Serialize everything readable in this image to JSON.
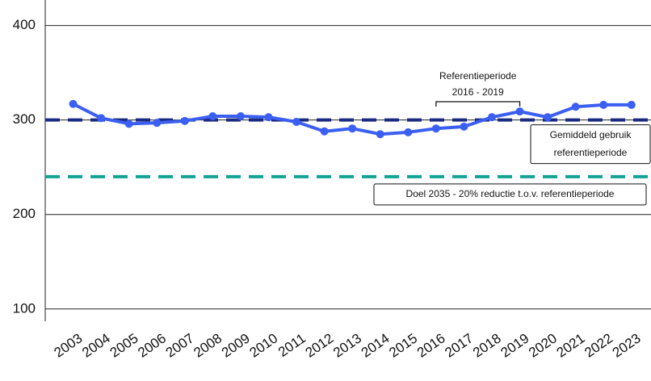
{
  "chart_data": {
    "type": "line",
    "x": [
      2003,
      2004,
      2005,
      2006,
      2007,
      2008,
      2009,
      2010,
      2011,
      2012,
      2013,
      2014,
      2015,
      2016,
      2017,
      2018,
      2019,
      2020,
      2021,
      2022,
      2023
    ],
    "series": [
      {
        "color": "#3b5ff0",
        "values": [
          317,
          302,
          296,
          297,
          299,
          304,
          304,
          303,
          298,
          288,
          291,
          285,
          287,
          291,
          293,
          303,
          309,
          303,
          314,
          316,
          316
        ]
      }
    ],
    "xlim": [
      2002,
      2023.7
    ],
    "xticks": [
      2003,
      2004,
      2005,
      2006,
      2007,
      2008,
      2009,
      2010,
      2011,
      2012,
      2013,
      2014,
      2015,
      2016,
      2017,
      2018,
      2019,
      2020,
      2021,
      2022,
      2023
    ],
    "ylim": [
      87,
      427
    ],
    "yticks": [
      100,
      200,
      300,
      400
    ],
    "grid": true,
    "reference_lines": [
      {
        "value": 300,
        "color": "#1a2a80",
        "label": [
          "Gemiddeld gebruik",
          "referentieperiode"
        ]
      },
      {
        "value": 240,
        "color": "#12a394",
        "label": [
          "Doel 2035 - 20% reductie t.o.v. referentieperiode"
        ]
      }
    ],
    "bracket": {
      "from": 2016,
      "to": 2019,
      "title": "Referentieperiode",
      "label": "2016 - 2019"
    }
  }
}
